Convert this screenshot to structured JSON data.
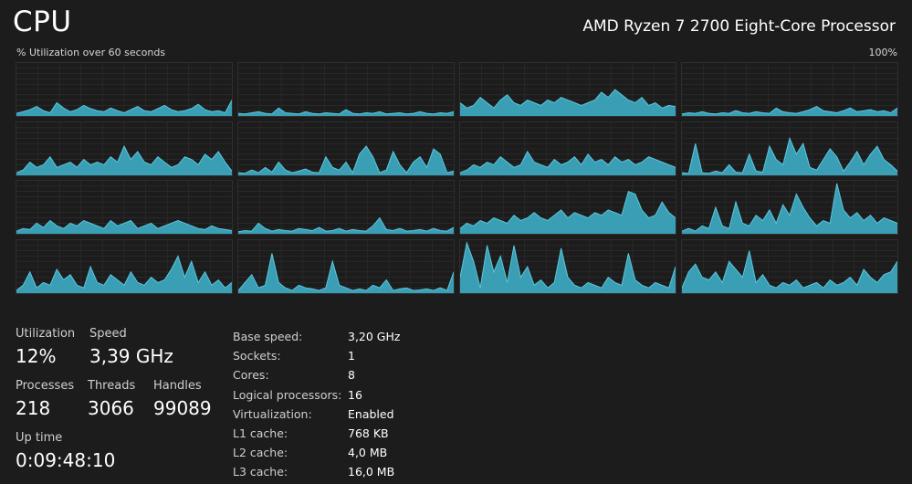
{
  "header": {
    "title": "CPU",
    "cpu_name": "AMD Ryzen 7 2700 Eight-Core Processor",
    "graph_label": "% Utilization over 60 seconds",
    "graph_max": "100%"
  },
  "colors": {
    "background": "#1c1c1c",
    "graph_fill": "#3a9eb4",
    "graph_line": "#5cc8e0",
    "grid": "#2f2f2f"
  },
  "stats": {
    "utilization": {
      "label": "Utilization",
      "value": "12%"
    },
    "speed": {
      "label": "Speed",
      "value": "3,39 GHz"
    },
    "processes": {
      "label": "Processes",
      "value": "218"
    },
    "threads": {
      "label": "Threads",
      "value": "3066"
    },
    "handles": {
      "label": "Handles",
      "value": "99089"
    },
    "uptime": {
      "label": "Up time",
      "value": "0:09:48:10"
    }
  },
  "details": [
    {
      "key": "Base speed:",
      "value": "3,20 GHz"
    },
    {
      "key": "Sockets:",
      "value": "1"
    },
    {
      "key": "Cores:",
      "value": "8"
    },
    {
      "key": "Logical processors:",
      "value": "16"
    },
    {
      "key": "Virtualization:",
      "value": "Enabled"
    },
    {
      "key": "L1 cache:",
      "value": "768 KB"
    },
    {
      "key": "L2 cache:",
      "value": "4,0 MB"
    },
    {
      "key": "L3 cache:",
      "value": "16,0 MB"
    }
  ],
  "chart_data": {
    "type": "area",
    "title": "% Utilization over 60 seconds",
    "ylim": [
      0,
      100
    ],
    "x_range_seconds": [
      0,
      60
    ],
    "grid": true,
    "series": [
      {
        "name": "",
        "values": [
          5,
          8,
          12,
          18,
          10,
          6,
          25,
          15,
          8,
          12,
          20,
          14,
          10,
          8,
          15,
          10,
          6,
          12,
          18,
          10,
          8,
          14,
          20,
          12,
          8,
          10,
          14,
          22,
          12,
          8,
          10,
          6,
          30
        ]
      },
      {
        "name": "",
        "values": [
          5,
          4,
          6,
          8,
          5,
          4,
          15,
          6,
          5,
          4,
          8,
          5,
          4,
          6,
          5,
          4,
          12,
          5,
          4,
          6,
          5,
          8,
          4,
          5,
          6,
          4,
          5,
          8,
          5,
          4,
          6,
          5,
          8
        ]
      },
      {
        "name": "",
        "values": [
          25,
          15,
          20,
          35,
          25,
          15,
          30,
          40,
          25,
          20,
          30,
          25,
          20,
          30,
          25,
          35,
          30,
          25,
          20,
          25,
          30,
          45,
          35,
          50,
          40,
          30,
          25,
          35,
          20,
          25,
          15,
          20,
          18
        ]
      },
      {
        "name": "",
        "values": [
          4,
          6,
          5,
          8,
          5,
          4,
          6,
          5,
          10,
          6,
          5,
          8,
          6,
          5,
          15,
          8,
          6,
          5,
          8,
          12,
          18,
          10,
          8,
          6,
          10,
          15,
          8,
          10,
          12,
          8,
          10,
          6,
          15
        ]
      },
      {
        "name": "",
        "values": [
          5,
          10,
          25,
          15,
          20,
          35,
          15,
          20,
          25,
          15,
          30,
          20,
          25,
          20,
          35,
          25,
          55,
          30,
          45,
          25,
          20,
          35,
          25,
          15,
          20,
          35,
          30,
          20,
          40,
          30,
          45,
          25,
          8
        ]
      },
      {
        "name": "",
        "values": [
          5,
          4,
          10,
          5,
          15,
          6,
          25,
          10,
          5,
          8,
          12,
          6,
          5,
          35,
          15,
          10,
          25,
          5,
          40,
          55,
          35,
          5,
          10,
          45,
          20,
          5,
          25,
          35,
          15,
          50,
          40,
          5,
          8
        ]
      },
      {
        "name": "",
        "values": [
          5,
          10,
          20,
          15,
          25,
          20,
          35,
          25,
          15,
          20,
          45,
          25,
          20,
          15,
          30,
          20,
          25,
          35,
          20,
          40,
          25,
          30,
          20,
          35,
          25,
          30,
          20,
          25,
          35,
          30,
          25,
          20,
          15
        ]
      },
      {
        "name": "",
        "values": [
          5,
          4,
          60,
          5,
          4,
          8,
          5,
          20,
          6,
          5,
          40,
          8,
          6,
          55,
          30,
          20,
          70,
          40,
          60,
          15,
          10,
          30,
          50,
          35,
          8,
          25,
          45,
          20,
          40,
          55,
          30,
          20,
          8
        ]
      },
      {
        "name": "",
        "values": [
          5,
          10,
          8,
          20,
          12,
          25,
          15,
          10,
          20,
          15,
          25,
          20,
          15,
          10,
          25,
          15,
          20,
          25,
          10,
          15,
          20,
          10,
          15,
          20,
          25,
          20,
          15,
          10,
          8,
          15,
          10,
          8,
          6
        ]
      },
      {
        "name": "",
        "values": [
          4,
          6,
          5,
          20,
          10,
          5,
          8,
          6,
          5,
          10,
          8,
          6,
          12,
          5,
          6,
          10,
          5,
          8,
          6,
          5,
          15,
          30,
          8,
          6,
          10,
          5,
          6,
          8,
          5,
          10,
          6,
          5,
          12
        ]
      },
      {
        "name": "",
        "values": [
          10,
          20,
          15,
          25,
          20,
          30,
          25,
          20,
          35,
          25,
          30,
          40,
          30,
          25,
          35,
          45,
          30,
          40,
          35,
          30,
          40,
          35,
          45,
          40,
          35,
          80,
          75,
          45,
          30,
          35,
          60,
          40,
          30
        ]
      },
      {
        "name": "",
        "values": [
          5,
          10,
          5,
          15,
          10,
          50,
          15,
          10,
          60,
          20,
          15,
          35,
          25,
          45,
          20,
          55,
          35,
          75,
          50,
          30,
          15,
          25,
          20,
          95,
          45,
          30,
          40,
          25,
          35,
          20,
          30,
          25,
          20
        ]
      },
      {
        "name": "",
        "values": [
          5,
          15,
          40,
          10,
          20,
          15,
          45,
          25,
          35,
          15,
          10,
          50,
          20,
          15,
          35,
          25,
          15,
          40,
          20,
          15,
          30,
          20,
          25,
          45,
          70,
          30,
          60,
          20,
          40,
          15,
          25,
          10,
          20
        ]
      },
      {
        "name": "",
        "values": [
          5,
          20,
          35,
          10,
          15,
          75,
          20,
          10,
          5,
          15,
          10,
          8,
          5,
          10,
          60,
          15,
          10,
          5,
          8,
          5,
          15,
          10,
          25,
          5,
          8,
          10,
          5,
          6,
          8,
          5,
          10,
          5,
          40
        ]
      },
      {
        "name": "",
        "values": [
          30,
          95,
          60,
          10,
          90,
          40,
          70,
          20,
          90,
          30,
          50,
          15,
          25,
          10,
          20,
          85,
          30,
          15,
          10,
          20,
          15,
          10,
          30,
          20,
          15,
          75,
          25,
          15,
          10,
          20,
          15,
          10,
          50
        ]
      },
      {
        "name": "",
        "values": [
          10,
          40,
          55,
          30,
          25,
          40,
          20,
          60,
          45,
          30,
          80,
          20,
          35,
          15,
          10,
          20,
          15,
          25,
          10,
          15,
          20,
          10,
          25,
          15,
          20,
          30,
          15,
          45,
          30,
          20,
          35,
          40,
          60
        ]
      }
    ]
  }
}
